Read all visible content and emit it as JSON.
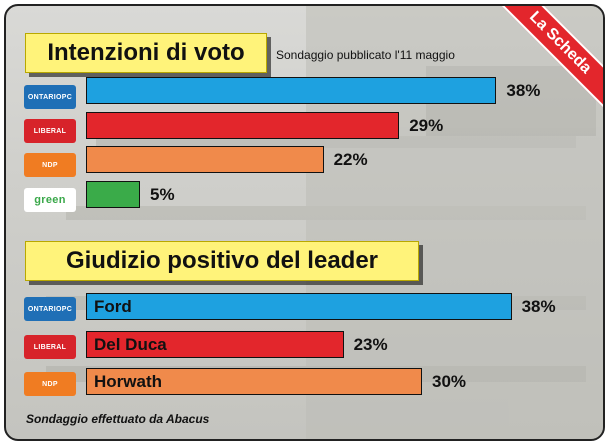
{
  "ribbon": "La Scheda",
  "section1": {
    "title": "Intenzioni di voto",
    "subtitle": "Sondaggio pubblicato l'11 maggio"
  },
  "section2": {
    "title": "Giudizio positivo del leader"
  },
  "source": "Sondaggio effettuato da Abacus",
  "logos": {
    "pc": {
      "text": "ONTARIOPC",
      "color": "#1f6fb6"
    },
    "liberal": {
      "text": "LIBERAL",
      "color": "#d7232a"
    },
    "ndp": {
      "text": "NDP",
      "color": "#f07c22"
    },
    "green": {
      "text": "green",
      "color": "#3aa84a"
    }
  },
  "chart_data": [
    {
      "type": "bar",
      "title": "Intenzioni di voto",
      "subtitle": "Sondaggio pubblicato l'11 maggio",
      "categories": [
        "Ontario PC",
        "Liberal",
        "NDP",
        "Green"
      ],
      "values": [
        38,
        29,
        22,
        5
      ],
      "value_labels": [
        "38%",
        "29%",
        "22%",
        "5%"
      ],
      "colors": [
        "#1ea1e0",
        "#e3262c",
        "#f08a4b",
        "#3aab49"
      ]
    },
    {
      "type": "bar",
      "title": "Giudizio positivo del leader",
      "categories": [
        "Ontario PC",
        "Liberal",
        "NDP"
      ],
      "leaders": [
        "Ford",
        "Del Duca",
        "Horwath"
      ],
      "values": [
        38,
        23,
        30
      ],
      "value_labels": [
        "38%",
        "23%",
        "30%"
      ],
      "colors": [
        "#1ea1e0",
        "#e3262c",
        "#f08a4b"
      ]
    }
  ]
}
